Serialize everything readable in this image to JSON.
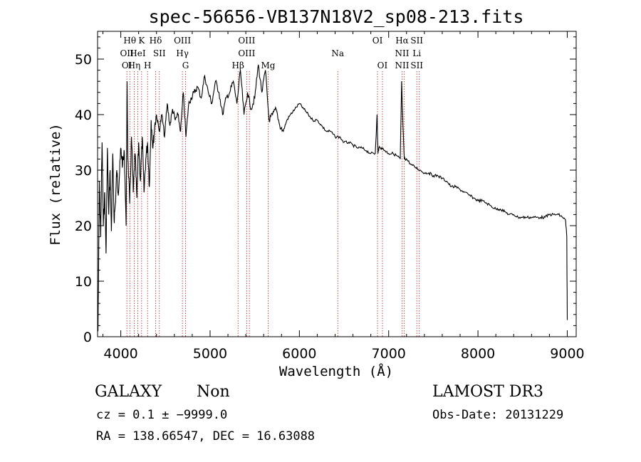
{
  "chart_data": {
    "type": "line",
    "title": "spec-56656-VB137N18V2_sp08-213.fits",
    "xlabel": "Wavelength (Å)",
    "ylabel": "Flux (relative)",
    "xlim": [
      3740,
      9100
    ],
    "ylim": [
      0,
      55
    ],
    "xticks": [
      4000,
      5000,
      6000,
      7000,
      8000,
      9000
    ],
    "yticks": [
      0,
      10,
      20,
      30,
      40,
      50
    ],
    "series": [
      {
        "name": "flux",
        "x": [
          3745,
          3760,
          3775,
          3790,
          3805,
          3820,
          3835,
          3850,
          3865,
          3880,
          3895,
          3910,
          3925,
          3940,
          3955,
          3970,
          3985,
          4000,
          4020,
          4040,
          4060,
          4070,
          4080,
          4100,
          4120,
          4140,
          4160,
          4180,
          4200,
          4220,
          4240,
          4260,
          4280,
          4300,
          4320,
          4340,
          4360,
          4380,
          4400,
          4430,
          4460,
          4490,
          4520,
          4550,
          4580,
          4610,
          4640,
          4670,
          4700,
          4730,
          4760,
          4790,
          4820,
          4860,
          4900,
          4940,
          4980,
          5020,
          5060,
          5100,
          5140,
          5180,
          5220,
          5260,
          5300,
          5340,
          5380,
          5420,
          5460,
          5500,
          5540,
          5580,
          5620,
          5660,
          5700,
          5740,
          5780,
          5820,
          5860,
          5900,
          5950,
          6000,
          6050,
          6100,
          6150,
          6200,
          6250,
          6300,
          6350,
          6400,
          6450,
          6500,
          6550,
          6600,
          6650,
          6700,
          6750,
          6800,
          6850,
          6870,
          6880,
          6890,
          6920,
          6960,
          7000,
          7050,
          7100,
          7130,
          7145,
          7160,
          7175,
          7200,
          7250,
          7300,
          7350,
          7400,
          7450,
          7500,
          7550,
          7600,
          7650,
          7700,
          7750,
          7800,
          7850,
          7900,
          7950,
          8000,
          8050,
          8100,
          8150,
          8200,
          8250,
          8300,
          8350,
          8400,
          8450,
          8500,
          8550,
          8600,
          8650,
          8700,
          8750,
          8800,
          8850,
          8900,
          8950,
          8980,
          8995,
          9000
        ],
        "values": [
          1,
          28,
          18,
          35,
          20,
          26,
          15,
          34,
          22,
          30,
          19,
          33,
          21,
          24,
          30,
          26,
          29,
          34,
          31,
          33,
          20,
          46,
          32,
          24,
          36,
          26,
          33,
          25,
          35,
          28,
          36,
          26,
          32,
          35,
          27,
          39,
          34,
          38,
          40,
          37,
          40,
          36,
          42,
          38,
          41,
          39,
          40,
          37,
          44,
          36,
          42,
          43,
          44,
          45,
          43,
          47,
          44,
          42,
          46,
          44,
          40,
          43,
          44,
          46,
          42,
          48,
          40,
          44,
          41,
          43,
          49,
          44,
          48,
          39,
          40,
          41,
          38,
          37,
          39,
          40,
          41,
          42,
          41,
          40,
          39,
          39,
          38,
          37,
          37,
          36,
          36,
          35,
          35,
          34.5,
          34,
          34,
          33.5,
          33,
          33,
          40,
          33,
          34,
          34,
          33.5,
          33,
          33,
          32.5,
          32,
          46,
          38,
          32,
          32,
          31,
          30.5,
          30,
          29.5,
          29.5,
          29,
          29,
          28.5,
          28,
          27,
          27,
          26.5,
          26,
          25.5,
          25,
          24.5,
          24.5,
          24,
          23.5,
          23,
          23,
          22.5,
          22,
          22,
          21.5,
          21.5,
          21.5,
          21.5,
          21.5,
          21.5,
          21.5,
          22,
          22,
          22,
          21.5,
          21,
          18,
          3
        ]
      }
    ],
    "spectral_lines": [
      {
        "wave": 4068,
        "rows": [
          {
            "label": "OII",
            "row": 2
          },
          {
            "label": "OI",
            "row": 3
          }
        ]
      },
      {
        "wave": 4101,
        "rows": [
          {
            "label": "Hθ",
            "row": 1
          }
        ]
      },
      {
        "wave": 4150,
        "rows": [
          {
            "label": "Hη",
            "row": 3
          }
        ]
      },
      {
        "wave": 4190,
        "rows": [
          {
            "label": "HeI",
            "row": 2
          }
        ]
      },
      {
        "wave": 4233,
        "rows": [
          {
            "label": "K",
            "row": 1
          }
        ]
      },
      {
        "wave": 4300,
        "rows": [
          {
            "label": "H",
            "row": 3
          }
        ]
      },
      {
        "wave": 4390,
        "rows": [
          {
            "label": "Hδ",
            "row": 1
          }
        ]
      },
      {
        "wave": 4432,
        "rows": [
          {
            "label": "SII",
            "row": 2
          }
        ]
      },
      {
        "wave": 4690,
        "rows": [
          {
            "label": "OIII",
            "row": 1
          },
          {
            "label": "Hγ",
            "row": 2
          }
        ]
      },
      {
        "wave": 4725,
        "rows": [
          {
            "label": "G",
            "row": 3
          }
        ]
      },
      {
        "wave": 5313,
        "rows": [
          {
            "label": "Hβ",
            "row": 3
          }
        ]
      },
      {
        "wave": 5410,
        "rows": [
          {
            "label": "OIII",
            "row": 1
          },
          {
            "label": "OIII",
            "row": 2
          }
        ]
      },
      {
        "wave": 5440,
        "rows": []
      },
      {
        "wave": 5650,
        "rows": [
          {
            "label": "Mg",
            "row": 3
          }
        ]
      },
      {
        "wave": 6430,
        "rows": [
          {
            "label": "Na",
            "row": 2
          }
        ]
      },
      {
        "wave": 6875,
        "rows": [
          {
            "label": "OI",
            "row": 1
          }
        ]
      },
      {
        "wave": 6930,
        "rows": [
          {
            "label": "OI",
            "row": 3
          }
        ]
      },
      {
        "wave": 7150,
        "rows": [
          {
            "label": "Hα",
            "row": 1
          },
          {
            "label": "NII",
            "row": 2
          },
          {
            "label": "NII",
            "row": 3
          }
        ]
      },
      {
        "wave": 7175,
        "rows": []
      },
      {
        "wave": 7315,
        "rows": [
          {
            "label": "SII",
            "row": 1
          },
          {
            "label": "Li",
            "row": 2
          },
          {
            "label": "SII",
            "row": 3
          }
        ]
      },
      {
        "wave": 7340,
        "rows": []
      }
    ]
  },
  "footer": {
    "object_class": "GALAXY",
    "subclass": "Non",
    "survey": "LAMOST DR3",
    "cz_line": "cz = 0.1 ± −9999.0",
    "obs_date": "Obs-Date: 20131229",
    "coords": "RA = 138.66547, DEC =  16.63088"
  }
}
